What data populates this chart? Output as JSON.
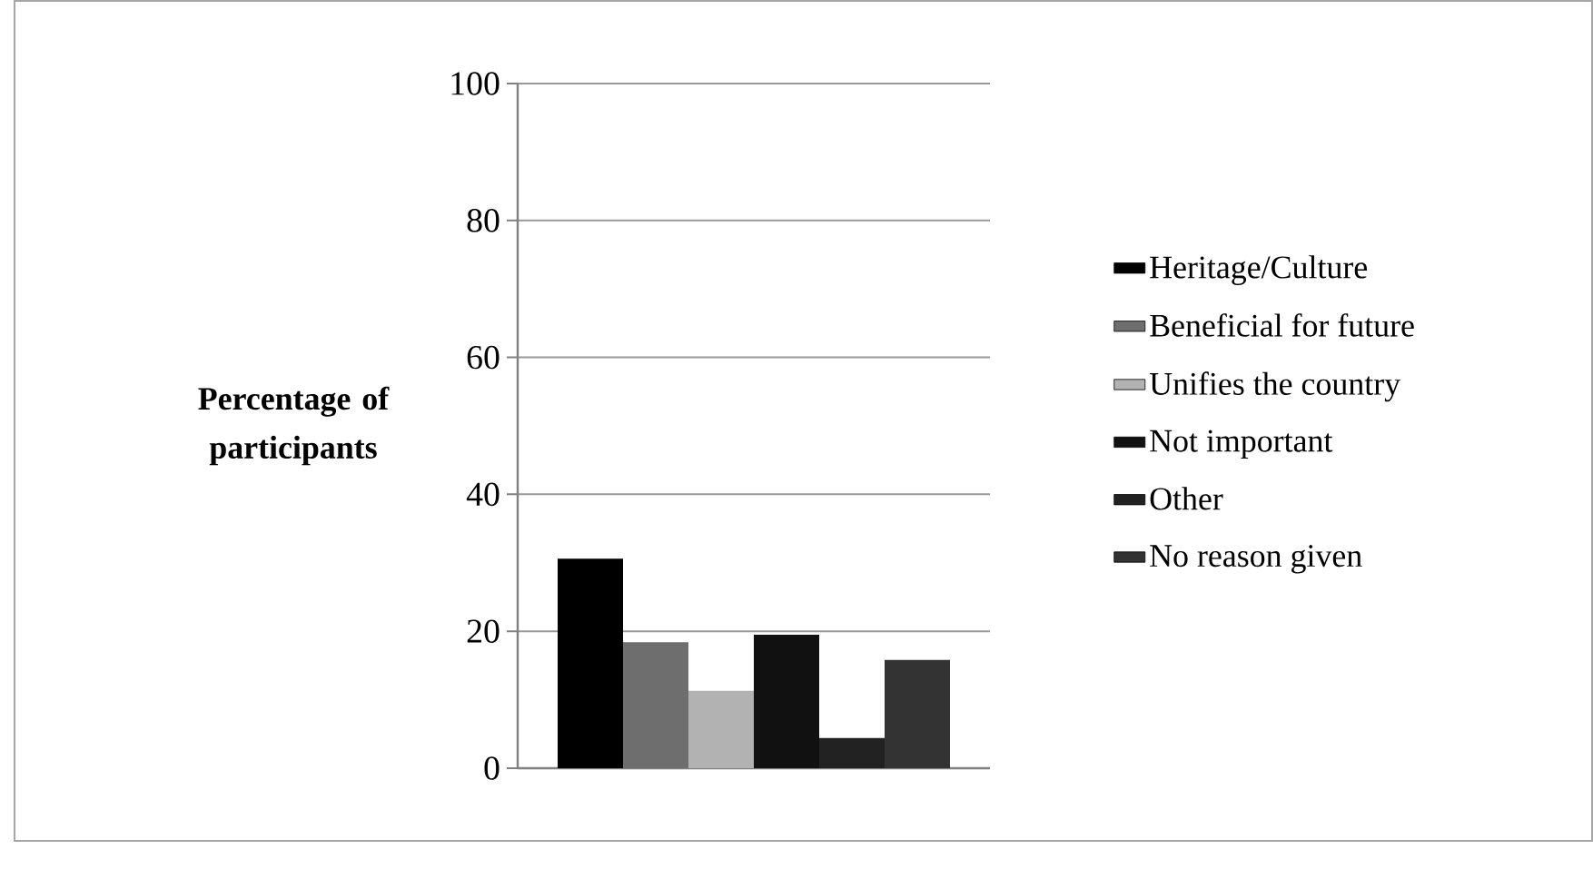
{
  "chart_data": {
    "type": "bar",
    "ylabel": "Percentage of participants",
    "categories": [
      null
    ],
    "series": [
      {
        "name": "Heritage/Culture",
        "color": "#000000",
        "values": [
          30.6
        ]
      },
      {
        "name": "Beneficial for future",
        "color": "#6e6e6e",
        "values": [
          18.4
        ]
      },
      {
        "name": "Unifies the country",
        "color": "#b2b2b2",
        "values": [
          11.3
        ]
      },
      {
        "name": "Not important",
        "color": "#111111",
        "values": [
          19.5
        ]
      },
      {
        "name": "Other",
        "color": "#222222",
        "values": [
          4.4
        ]
      },
      {
        "name": "No reason given",
        "color": "#333333",
        "values": [
          15.8
        ]
      }
    ],
    "ylim": [
      0,
      100
    ],
    "yticks": [
      0,
      20,
      40,
      60,
      80,
      100
    ],
    "grid": "y",
    "legend": "right"
  }
}
